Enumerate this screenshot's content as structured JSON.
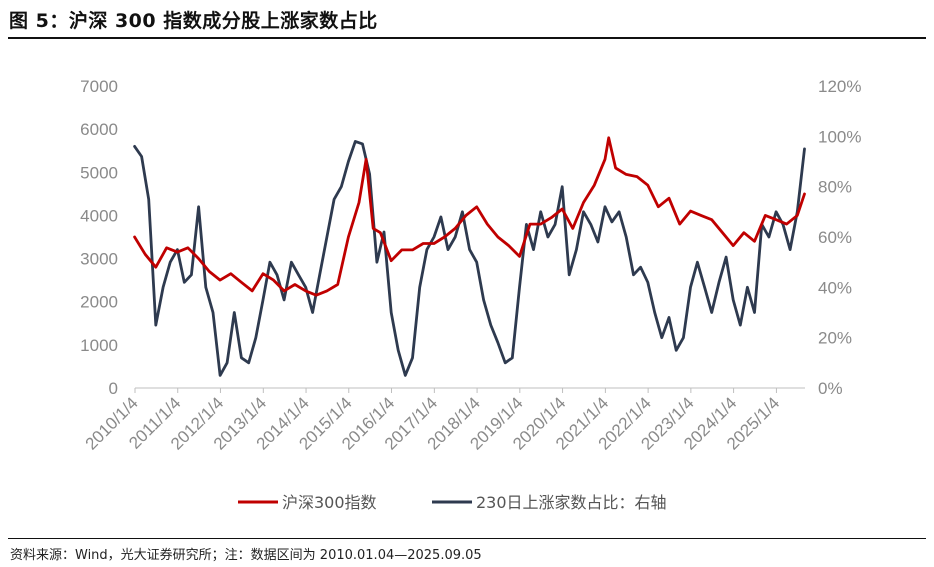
{
  "title": "图 5：沪深 300 指数成分股上涨家数占比",
  "source": "资料来源：Wind，光大证券研究所；注：数据区间为 2010.01.04—2025.09.05",
  "colors": {
    "csi300": "#c00000",
    "ratio": "#2e3a4f",
    "axis": "#8a8a8a"
  },
  "chart_data": {
    "type": "line",
    "title": "",
    "xlabel": "",
    "ylabel": "",
    "legend_position": "bottom",
    "x_ticks": [
      "2010/1/4",
      "2011/1/4",
      "2012/1/4",
      "2013/1/4",
      "2014/1/4",
      "2015/1/4",
      "2016/1/4",
      "2017/1/4",
      "2018/1/4",
      "2019/1/4",
      "2020/1/4",
      "2021/1/4",
      "2022/1/4",
      "2023/1/4",
      "2024/1/4",
      "2025/1/4"
    ],
    "y_left_ticks": [
      "7000",
      "6000",
      "5000",
      "4000",
      "3000",
      "2000",
      "1000",
      "0"
    ],
    "y_right_ticks": [
      "120%",
      "100%",
      "80%",
      "60%",
      "40%",
      "20%",
      "0%"
    ],
    "y_left_lim": [
      0,
      7000
    ],
    "y_right_lim": [
      0,
      1.2
    ],
    "x_range": [
      "2010-01-04",
      "2025-09-05"
    ],
    "series": [
      {
        "name": "沪深300指数",
        "axis": "left",
        "x": [
          "2010-01",
          "2010-04",
          "2010-07",
          "2010-10",
          "2011-01",
          "2011-04",
          "2011-07",
          "2011-10",
          "2012-01",
          "2012-04",
          "2012-07",
          "2012-10",
          "2013-01",
          "2013-04",
          "2013-07",
          "2013-10",
          "2014-01",
          "2014-04",
          "2014-07",
          "2014-10",
          "2015-01",
          "2015-04",
          "2015-06",
          "2015-08",
          "2015-10",
          "2016-01",
          "2016-04",
          "2016-07",
          "2016-10",
          "2017-01",
          "2017-04",
          "2017-07",
          "2017-10",
          "2018-01",
          "2018-04",
          "2018-07",
          "2018-10",
          "2019-01",
          "2019-04",
          "2019-07",
          "2019-10",
          "2020-01",
          "2020-04",
          "2020-07",
          "2020-10",
          "2021-01",
          "2021-02",
          "2021-04",
          "2021-07",
          "2021-10",
          "2022-01",
          "2022-04",
          "2022-07",
          "2022-10",
          "2023-01",
          "2023-04",
          "2023-07",
          "2023-10",
          "2024-01",
          "2024-04",
          "2024-07",
          "2024-10",
          "2025-01",
          "2025-04",
          "2025-07",
          "2025-09"
        ],
        "values": [
          3500,
          3100,
          2800,
          3250,
          3150,
          3250,
          3000,
          2700,
          2500,
          2650,
          2450,
          2250,
          2650,
          2500,
          2250,
          2400,
          2250,
          2150,
          2250,
          2400,
          3500,
          4300,
          5300,
          3700,
          3600,
          2950,
          3200,
          3200,
          3350,
          3350,
          3500,
          3700,
          4000,
          4200,
          3800,
          3500,
          3300,
          3050,
          3800,
          3800,
          3950,
          4150,
          3700,
          4300,
          4700,
          5300,
          5800,
          5100,
          4950,
          4900,
          4700,
          4200,
          4400,
          3800,
          4100,
          4000,
          3900,
          3600,
          3300,
          3600,
          3400,
          4000,
          3900,
          3800,
          4000,
          4500
        ]
      },
      {
        "name": "230日上涨家数占比：右轴",
        "axis": "right",
        "x": [
          "2010-01",
          "2010-03",
          "2010-05",
          "2010-07",
          "2010-09",
          "2010-11",
          "2011-01",
          "2011-03",
          "2011-05",
          "2011-07",
          "2011-09",
          "2011-11",
          "2012-01",
          "2012-03",
          "2012-05",
          "2012-07",
          "2012-09",
          "2012-11",
          "2013-01",
          "2013-03",
          "2013-05",
          "2013-07",
          "2013-09",
          "2013-11",
          "2014-01",
          "2014-03",
          "2014-05",
          "2014-07",
          "2014-09",
          "2014-11",
          "2015-01",
          "2015-03",
          "2015-05",
          "2015-07",
          "2015-09",
          "2015-11",
          "2016-01",
          "2016-03",
          "2016-05",
          "2016-07",
          "2016-09",
          "2016-11",
          "2017-01",
          "2017-03",
          "2017-05",
          "2017-07",
          "2017-09",
          "2017-11",
          "2018-01",
          "2018-03",
          "2018-05",
          "2018-07",
          "2018-09",
          "2018-11",
          "2019-01",
          "2019-03",
          "2019-05",
          "2019-07",
          "2019-09",
          "2019-11",
          "2020-01",
          "2020-03",
          "2020-05",
          "2020-07",
          "2020-09",
          "2020-11",
          "2021-01",
          "2021-03",
          "2021-05",
          "2021-07",
          "2021-09",
          "2021-11",
          "2022-01",
          "2022-03",
          "2022-05",
          "2022-07",
          "2022-09",
          "2022-11",
          "2023-01",
          "2023-03",
          "2023-05",
          "2023-07",
          "2023-09",
          "2023-11",
          "2024-01",
          "2024-03",
          "2024-05",
          "2024-07",
          "2024-09",
          "2024-11",
          "2025-01",
          "2025-03",
          "2025-05",
          "2025-07",
          "2025-09"
        ],
        "values": [
          0.96,
          0.92,
          0.75,
          0.25,
          0.4,
          0.5,
          0.55,
          0.42,
          0.45,
          0.72,
          0.4,
          0.3,
          0.05,
          0.1,
          0.3,
          0.12,
          0.1,
          0.2,
          0.35,
          0.5,
          0.45,
          0.35,
          0.5,
          0.45,
          0.4,
          0.3,
          0.45,
          0.6,
          0.75,
          0.8,
          0.9,
          0.98,
          0.97,
          0.85,
          0.5,
          0.62,
          0.3,
          0.15,
          0.05,
          0.12,
          0.4,
          0.55,
          0.6,
          0.68,
          0.55,
          0.6,
          0.7,
          0.55,
          0.5,
          0.35,
          0.25,
          0.18,
          0.1,
          0.12,
          0.4,
          0.65,
          0.55,
          0.7,
          0.6,
          0.65,
          0.8,
          0.45,
          0.55,
          0.7,
          0.65,
          0.58,
          0.72,
          0.66,
          0.7,
          0.6,
          0.45,
          0.48,
          0.42,
          0.3,
          0.2,
          0.28,
          0.15,
          0.2,
          0.4,
          0.5,
          0.4,
          0.3,
          0.42,
          0.52,
          0.35,
          0.25,
          0.4,
          0.3,
          0.65,
          0.6,
          0.7,
          0.65,
          0.55,
          0.7,
          0.95
        ]
      }
    ]
  }
}
